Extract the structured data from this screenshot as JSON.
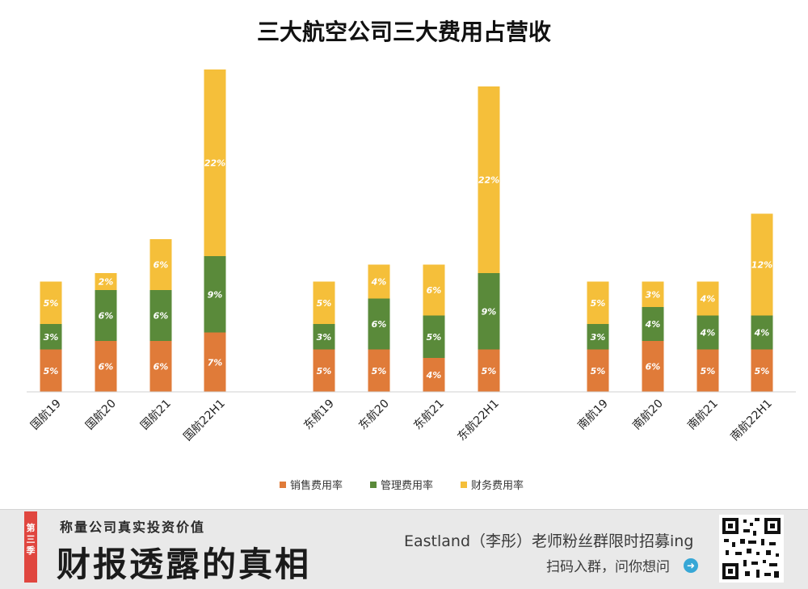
{
  "chart_data": {
    "type": "bar",
    "stacked": true,
    "title": "三大航空公司三大费用占营收",
    "categories": [
      "国航19",
      "国航20",
      "国航21",
      "国航22H1",
      "东航19",
      "东航20",
      "东航21",
      "东航22H1",
      "南航19",
      "南航20",
      "南航21",
      "南航22H1"
    ],
    "series": [
      {
        "name": "销售费用率",
        "color": "#e07b39",
        "values": [
          5,
          6,
          6,
          7,
          5,
          5,
          4,
          5,
          5,
          6,
          5,
          5
        ]
      },
      {
        "name": "管理费用率",
        "color": "#5a8a3a",
        "values": [
          3,
          6,
          6,
          9,
          3,
          6,
          5,
          9,
          3,
          4,
          4,
          4
        ]
      },
      {
        "name": "财务费用率",
        "color": "#f5bf3a",
        "values": [
          5,
          2,
          6,
          22,
          5,
          4,
          6,
          22,
          5,
          3,
          4,
          12
        ]
      }
    ],
    "data_label_suffix": "%",
    "legend_position": "bottom",
    "grid": false
  },
  "footer": {
    "season_badge": "第三季",
    "slogan": "称量公司真实投资价值",
    "brand": "财报透露的真相",
    "promo": "Eastland（李彤）老师粉丝群限时招募ing",
    "cta": "扫码入群，问你想问",
    "arrow_icon": "➜"
  }
}
